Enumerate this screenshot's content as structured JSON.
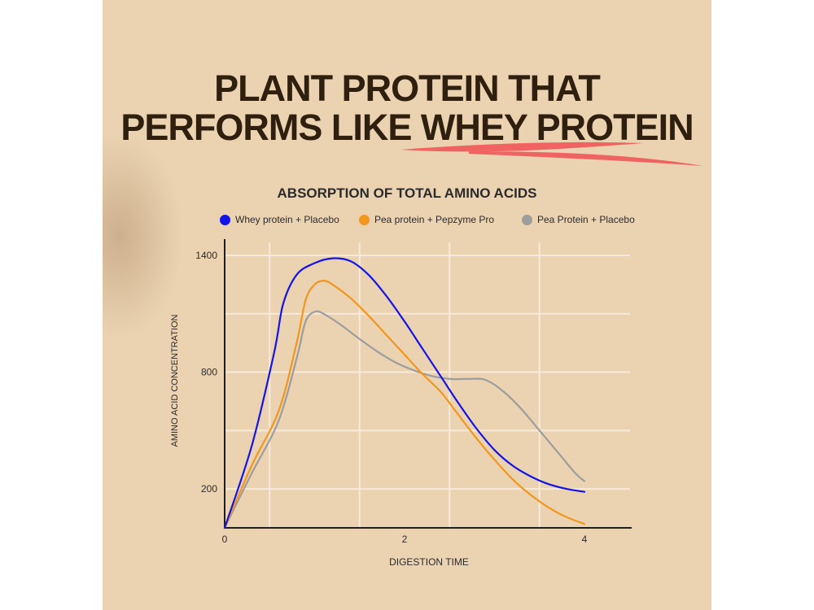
{
  "headline": {
    "line1": "PLANT PROTEIN THAT",
    "line2_prefix": "PERFORMS LIKE ",
    "line2_highlight": "WHEY PROTEIN",
    "underline_color": "#f06363"
  },
  "chart_data": {
    "type": "line",
    "title": "ABSORPTION OF TOTAL AMINO ACIDS",
    "xlabel": "DIGESTION TIME",
    "ylabel": "AMINO ACID CONCENTRATION",
    "xlim": [
      0,
      4
    ],
    "ylim": [
      0,
      1450
    ],
    "x_ticks": [
      0,
      2,
      4
    ],
    "y_ticks": [
      200,
      800,
      1400
    ],
    "grid": true,
    "legend_position": "top",
    "series": [
      {
        "name": "Whey protein + Placebo",
        "color": "#1414e6",
        "points": [
          [
            0,
            0
          ],
          [
            0.3,
            420
          ],
          [
            0.55,
            900
          ],
          [
            0.65,
            1150
          ],
          [
            0.8,
            1300
          ],
          [
            1.0,
            1360
          ],
          [
            1.2,
            1385
          ],
          [
            1.4,
            1370
          ],
          [
            1.6,
            1300
          ],
          [
            1.8,
            1190
          ],
          [
            2.0,
            1060
          ],
          [
            2.2,
            920
          ],
          [
            2.4,
            780
          ],
          [
            2.6,
            640
          ],
          [
            2.8,
            510
          ],
          [
            3.0,
            400
          ],
          [
            3.2,
            320
          ],
          [
            3.4,
            265
          ],
          [
            3.6,
            225
          ],
          [
            3.8,
            200
          ],
          [
            4.0,
            185
          ]
        ]
      },
      {
        "name": "Pea protein + Pepzyme Pro",
        "color": "#f2961e",
        "points": [
          [
            0,
            0
          ],
          [
            0.3,
            320
          ],
          [
            0.6,
            600
          ],
          [
            0.8,
            950
          ],
          [
            0.9,
            1170
          ],
          [
            1.0,
            1250
          ],
          [
            1.1,
            1270
          ],
          [
            1.2,
            1250
          ],
          [
            1.4,
            1180
          ],
          [
            1.6,
            1090
          ],
          [
            1.8,
            990
          ],
          [
            2.0,
            890
          ],
          [
            2.2,
            790
          ],
          [
            2.4,
            700
          ],
          [
            2.6,
            580
          ],
          [
            2.8,
            460
          ],
          [
            3.0,
            350
          ],
          [
            3.2,
            250
          ],
          [
            3.4,
            170
          ],
          [
            3.6,
            105
          ],
          [
            3.8,
            55
          ],
          [
            4.0,
            20
          ]
        ]
      },
      {
        "name": "Pea Protein + Placebo",
        "color": "#9d9d9d",
        "points": [
          [
            0,
            0
          ],
          [
            0.3,
            280
          ],
          [
            0.6,
            550
          ],
          [
            0.8,
            870
          ],
          [
            0.9,
            1060
          ],
          [
            1.0,
            1110
          ],
          [
            1.1,
            1100
          ],
          [
            1.3,
            1040
          ],
          [
            1.5,
            970
          ],
          [
            1.7,
            905
          ],
          [
            1.9,
            850
          ],
          [
            2.1,
            810
          ],
          [
            2.3,
            780
          ],
          [
            2.5,
            765
          ],
          [
            2.7,
            765
          ],
          [
            2.9,
            760
          ],
          [
            3.1,
            700
          ],
          [
            3.3,
            610
          ],
          [
            3.5,
            500
          ],
          [
            3.7,
            390
          ],
          [
            3.9,
            280
          ],
          [
            4.0,
            240
          ]
        ]
      }
    ]
  }
}
